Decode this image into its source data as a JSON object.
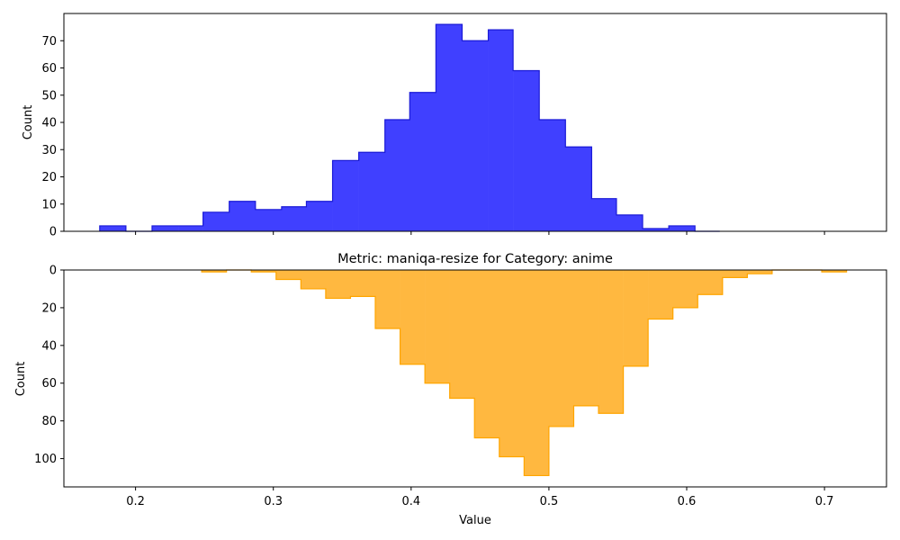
{
  "chart_data": [
    {
      "type": "area",
      "subtype": "step-histogram",
      "title": "",
      "xlabel": "",
      "ylabel": "Count",
      "xlim": [
        0.148,
        0.745
      ],
      "ylim": [
        0,
        80
      ],
      "x_ticks": [
        0.2,
        0.3,
        0.4,
        0.5,
        0.6,
        0.7
      ],
      "y_ticks": [
        0,
        10,
        20,
        30,
        40,
        50,
        60,
        70
      ],
      "y_tick_labels": [
        "0",
        "10",
        "20",
        "30",
        "40",
        "50",
        "60",
        "70"
      ],
      "show_x_tick_labels": false,
      "grid": false,
      "fill_color": "#4040ff",
      "edge_color": "#1a1ad6",
      "bin_edges": [
        0.174,
        0.193,
        0.212,
        0.231,
        0.249,
        0.268,
        0.287,
        0.306,
        0.324,
        0.343,
        0.362,
        0.381,
        0.399,
        0.418,
        0.437,
        0.456,
        0.474,
        0.493,
        0.512,
        0.531,
        0.549,
        0.568,
        0.587,
        0.606,
        0.624
      ],
      "counts": [
        2,
        0,
        2,
        2,
        7,
        11,
        8,
        9,
        11,
        26,
        29,
        41,
        51,
        76,
        70,
        74,
        59,
        41,
        31,
        12,
        6,
        1,
        2,
        0
      ]
    },
    {
      "type": "area",
      "subtype": "step-histogram-inverted",
      "title": "Metric: maniqa-resize for Category: anime",
      "xlabel": "Value",
      "ylabel": "Count",
      "xlim": [
        0.148,
        0.745
      ],
      "ylim": [
        0,
        115
      ],
      "inverted_y": true,
      "x_ticks": [
        0.2,
        0.3,
        0.4,
        0.5,
        0.6,
        0.7
      ],
      "x_tick_labels": [
        "0.2",
        "0.3",
        "0.4",
        "0.5",
        "0.6",
        "0.7"
      ],
      "y_ticks": [
        0,
        20,
        40,
        60,
        80,
        100
      ],
      "y_tick_labels": [
        "0",
        "20",
        "40",
        "60",
        "80",
        "100"
      ],
      "grid": false,
      "fill_color": "#ffb840",
      "edge_color": "#ffa500",
      "bin_edges": [
        0.248,
        0.266,
        0.284,
        0.302,
        0.32,
        0.338,
        0.356,
        0.374,
        0.392,
        0.41,
        0.428,
        0.446,
        0.464,
        0.482,
        0.5,
        0.518,
        0.536,
        0.554,
        0.572,
        0.59,
        0.608,
        0.626,
        0.644,
        0.662,
        0.68,
        0.698,
        0.716
      ],
      "counts": [
        1,
        0,
        1,
        5,
        10,
        15,
        14,
        31,
        50,
        60,
        68,
        89,
        99,
        109,
        83,
        72,
        76,
        51,
        26,
        20,
        13,
        4,
        2,
        0,
        0,
        1
      ]
    }
  ]
}
